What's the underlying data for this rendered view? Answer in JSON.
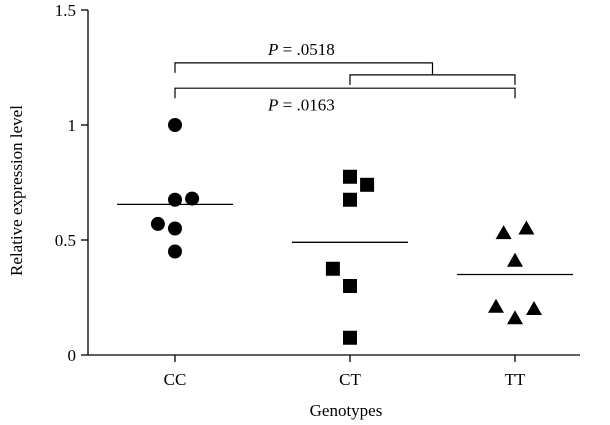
{
  "chart_data": {
    "type": "scatter",
    "subtype": "dot-plot-with-mean-lines",
    "title": "",
    "xlabel": "Genotypes",
    "ylabel": "Relative expression level",
    "ylim": [
      0,
      1.5
    ],
    "yticks": [
      {
        "value": 0,
        "label": "0"
      },
      {
        "value": 0.5,
        "label": "0.5"
      },
      {
        "value": 1,
        "label": "1"
      },
      {
        "value": 1.5,
        "label": "1.5"
      }
    ],
    "categories": [
      "CC",
      "CT",
      "TT"
    ],
    "grid": false,
    "legend": "none",
    "series": [
      {
        "category": "CC",
        "marker": "circle",
        "mean": 0.655,
        "points": [
          {
            "offset": 0,
            "y": 1.0
          },
          {
            "offset": 0,
            "y": 0.675
          },
          {
            "offset": 0.9,
            "y": 0.68
          },
          {
            "offset": -0.9,
            "y": 0.57
          },
          {
            "offset": 0,
            "y": 0.55
          },
          {
            "offset": 0,
            "y": 0.45
          }
        ]
      },
      {
        "category": "CT",
        "marker": "square",
        "mean": 0.49,
        "points": [
          {
            "offset": 0,
            "y": 0.775
          },
          {
            "offset": 0.9,
            "y": 0.74
          },
          {
            "offset": 0,
            "y": 0.675
          },
          {
            "offset": -0.9,
            "y": 0.375
          },
          {
            "offset": 0,
            "y": 0.3
          },
          {
            "offset": 0,
            "y": 0.075
          }
        ]
      },
      {
        "category": "TT",
        "marker": "triangle",
        "mean": 0.35,
        "points": [
          {
            "offset": -0.6,
            "y": 0.53
          },
          {
            "offset": 0.6,
            "y": 0.55
          },
          {
            "offset": 0,
            "y": 0.41
          },
          {
            "offset": -1.0,
            "y": 0.21
          },
          {
            "offset": 0,
            "y": 0.16
          },
          {
            "offset": 1.0,
            "y": 0.2
          }
        ]
      }
    ],
    "annotations": [
      {
        "label_prefix": "P",
        "label_value": "= .0518",
        "from": "CC",
        "to": [
          "CT",
          "TT"
        ],
        "y": 1.27,
        "label_y": 1.33
      },
      {
        "label_prefix": "P",
        "label_value": "= .0163",
        "from": "CC",
        "to": "TT",
        "y": 1.16,
        "label_y": 1.09
      }
    ]
  }
}
